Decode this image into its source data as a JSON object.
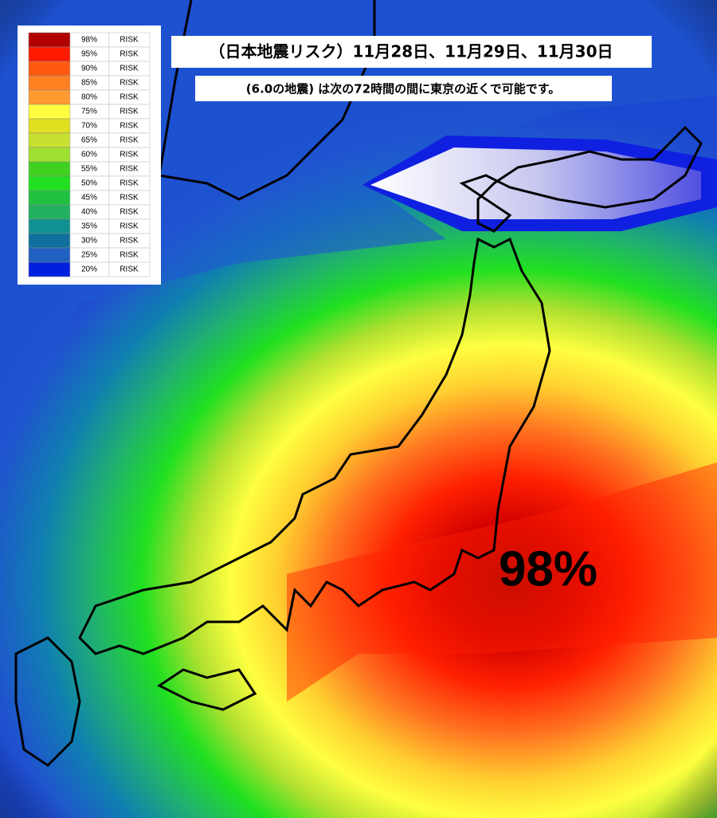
{
  "header": {
    "title": "（日本地震リスク）11月28日、11月29日、11月30日",
    "subtitle": "(6.0の地震) は次の72時間の間に東京の近くで可能です。"
  },
  "legend": {
    "rows": [
      {
        "label": "98%",
        "risk": "RISK",
        "color": "#b00000"
      },
      {
        "label": "95%",
        "risk": "RISK",
        "color": "#ff1a00"
      },
      {
        "label": "90%",
        "risk": "RISK",
        "color": "#ff5a10"
      },
      {
        "label": "85%",
        "risk": "RISK",
        "color": "#ff8020"
      },
      {
        "label": "80%",
        "risk": "RISK",
        "color": "#ff9a30"
      },
      {
        "label": "75%",
        "risk": "RISK",
        "color": "#ffff40"
      },
      {
        "label": "70%",
        "risk": "RISK",
        "color": "#e0e020"
      },
      {
        "label": "65%",
        "risk": "RISK",
        "color": "#c8e030"
      },
      {
        "label": "60%",
        "risk": "RISK",
        "color": "#a0e030"
      },
      {
        "label": "55%",
        "risk": "RISK",
        "color": "#40d020"
      },
      {
        "label": "50%",
        "risk": "RISK",
        "color": "#20e020"
      },
      {
        "label": "45%",
        "risk": "RISK",
        "color": "#20c040"
      },
      {
        "label": "40%",
        "risk": "RISK",
        "color": "#20b060"
      },
      {
        "label": "35%",
        "risk": "RISK",
        "color": "#109090"
      },
      {
        "label": "30%",
        "risk": "RISK",
        "color": "#1070a0"
      },
      {
        "label": "25%",
        "risk": "RISK",
        "color": "#2060c0"
      },
      {
        "label": "20%",
        "risk": "RISK",
        "color": "#0020e0"
      }
    ]
  },
  "annotation": "98%"
}
